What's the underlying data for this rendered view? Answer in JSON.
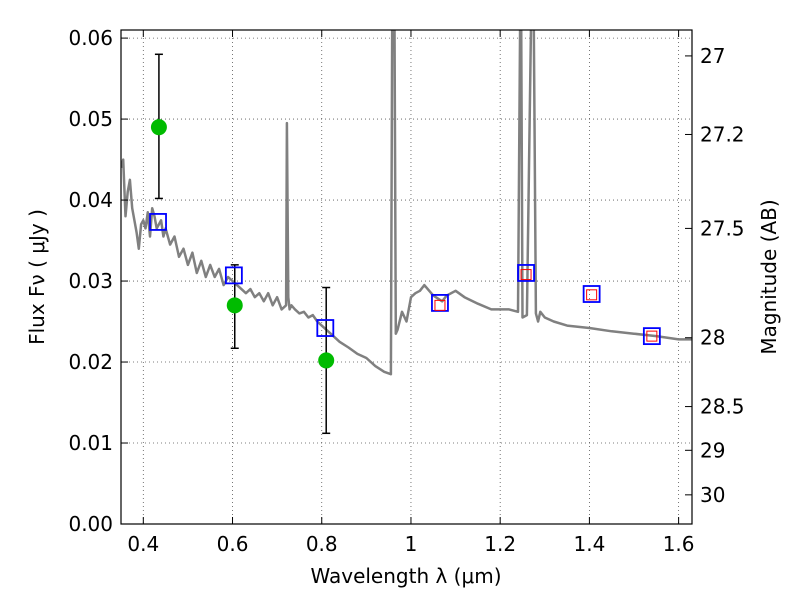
{
  "chart_data": {
    "type": "line",
    "xlabel": "Wavelength  λ (μm)",
    "ylabel": "Flux  Fν  ( μJy )",
    "y2label": "Magnitude (AB)",
    "xlim": [
      0.35,
      1.63
    ],
    "ylim": [
      0.0,
      0.061
    ],
    "grid": true,
    "x_ticks": [
      0.4,
      0.6,
      0.8,
      1.0,
      1.2,
      1.4,
      1.6
    ],
    "x_tick_labels": [
      "0.4",
      "0.6",
      "0.8",
      "1",
      "1.2",
      "1.4",
      "1.6"
    ],
    "y_ticks": [
      0.0,
      0.01,
      0.02,
      0.03,
      0.04,
      0.05,
      0.06
    ],
    "y_tick_labels": [
      "0.00",
      "0.01",
      "0.02",
      "0.03",
      "0.04",
      "0.05",
      "0.06"
    ],
    "y2_ticks": [
      {
        "label": "27",
        "flux": 0.0578
      },
      {
        "label": "27.2",
        "flux": 0.0481
      },
      {
        "label": "27.5",
        "flux": 0.0365
      },
      {
        "label": "28",
        "flux": 0.023
      },
      {
        "label": "28.5",
        "flux": 0.0145
      },
      {
        "label": "29",
        "flux": 0.0091
      },
      {
        "label": "30",
        "flux": 0.0036
      }
    ],
    "colors": {
      "model": "#808080",
      "observed": "#00bb00",
      "model_phot": "#0000ff",
      "inner_marker": "#ff0000",
      "errorbar": "#000000",
      "grid": "#555555"
    },
    "series": [
      {
        "kind": "model_spectrum",
        "x": [
          0.35,
          0.355,
          0.36,
          0.365,
          0.37,
          0.375,
          0.38,
          0.385,
          0.39,
          0.395,
          0.4,
          0.405,
          0.41,
          0.415,
          0.42,
          0.425,
          0.43,
          0.435,
          0.44,
          0.445,
          0.45,
          0.46,
          0.47,
          0.48,
          0.49,
          0.5,
          0.51,
          0.52,
          0.53,
          0.54,
          0.55,
          0.56,
          0.57,
          0.58,
          0.59,
          0.6,
          0.61,
          0.62,
          0.63,
          0.64,
          0.65,
          0.66,
          0.67,
          0.68,
          0.69,
          0.7,
          0.71,
          0.72,
          0.722,
          0.725,
          0.728,
          0.732,
          0.74,
          0.75,
          0.76,
          0.77,
          0.78,
          0.79,
          0.8,
          0.82,
          0.84,
          0.86,
          0.88,
          0.9,
          0.92,
          0.94,
          0.955,
          0.958,
          0.96,
          0.963,
          0.966,
          0.97,
          0.98,
          0.99,
          1.0,
          1.01,
          1.02,
          1.03,
          1.05,
          1.07,
          1.08,
          1.1,
          1.12,
          1.15,
          1.18,
          1.2,
          1.22,
          1.24,
          1.245,
          1.247,
          1.25,
          1.26,
          1.27,
          1.275,
          1.28,
          1.285,
          1.29,
          1.3,
          1.32,
          1.35,
          1.4,
          1.45,
          1.5,
          1.55,
          1.6,
          1.63
        ],
        "y": [
          0.044,
          0.045,
          0.038,
          0.041,
          0.0425,
          0.039,
          0.0375,
          0.036,
          0.034,
          0.037,
          0.0375,
          0.0365,
          0.0385,
          0.0355,
          0.039,
          0.038,
          0.0365,
          0.037,
          0.0375,
          0.0355,
          0.0365,
          0.0345,
          0.0355,
          0.033,
          0.034,
          0.032,
          0.0335,
          0.031,
          0.0325,
          0.0305,
          0.032,
          0.0305,
          0.0315,
          0.0295,
          0.0305,
          0.03,
          0.0295,
          0.029,
          0.0285,
          0.029,
          0.028,
          0.0285,
          0.0275,
          0.0285,
          0.027,
          0.028,
          0.0265,
          0.027,
          0.0495,
          0.028,
          0.0265,
          0.027,
          0.0265,
          0.026,
          0.0262,
          0.0255,
          0.0258,
          0.025,
          0.0245,
          0.0235,
          0.0225,
          0.0218,
          0.021,
          0.0205,
          0.0195,
          0.0188,
          0.0185,
          0.062,
          0.062,
          0.062,
          0.0235,
          0.024,
          0.0262,
          0.025,
          0.028,
          0.0285,
          0.0288,
          0.0295,
          0.0282,
          0.0275,
          0.0282,
          0.0288,
          0.028,
          0.0272,
          0.0265,
          0.0265,
          0.0265,
          0.0262,
          0.065,
          0.065,
          0.0255,
          0.0258,
          0.065,
          0.065,
          0.026,
          0.025,
          0.0262,
          0.0255,
          0.025,
          0.0245,
          0.0242,
          0.0238,
          0.0235,
          0.0232,
          0.0228,
          0.0228
        ]
      },
      {
        "kind": "observed",
        "x": [
          0.435,
          0.605,
          0.81
        ],
        "y": [
          0.049,
          0.027,
          0.0202
        ],
        "yerr_low": [
          0.0402,
          0.0217,
          0.0112
        ],
        "yerr_high": [
          0.058,
          0.032,
          0.0292
        ]
      },
      {
        "kind": "model_photometry",
        "x": [
          0.433,
          0.603,
          0.808,
          1.065,
          1.258,
          1.405,
          1.54
        ],
        "y": [
          0.0373,
          0.0307,
          0.0242,
          0.0273,
          0.031,
          0.0284,
          0.0232
        ]
      },
      {
        "kind": "inner_photometry",
        "x": [
          1.065,
          1.258,
          1.405,
          1.54
        ],
        "y": [
          0.027,
          0.0308,
          0.0283,
          0.0232
        ]
      }
    ]
  }
}
